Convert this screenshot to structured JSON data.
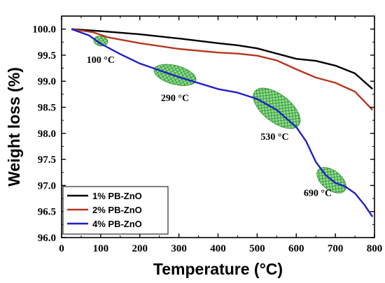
{
  "chart_data": {
    "type": "line",
    "xlabel": "Temperature (°C)",
    "ylabel": "Weight loss (%)",
    "xlim": [
      0,
      800
    ],
    "ylim": [
      96.0,
      100.25
    ],
    "x_ticks": [
      0,
      100,
      200,
      300,
      400,
      500,
      600,
      700,
      800
    ],
    "y_ticks": [
      96.0,
      96.5,
      97.0,
      97.5,
      98.0,
      98.5,
      99.0,
      99.5,
      100.0
    ],
    "grid": false,
    "legend_position": "bottom-left",
    "series": [
      {
        "name": "1% PB-ZnO",
        "color": "#000000",
        "points": [
          [
            25,
            100.0
          ],
          [
            100,
            99.96
          ],
          [
            200,
            99.9
          ],
          [
            300,
            99.82
          ],
          [
            400,
            99.73
          ],
          [
            450,
            99.69
          ],
          [
            500,
            99.63
          ],
          [
            550,
            99.53
          ],
          [
            600,
            99.43
          ],
          [
            650,
            99.39
          ],
          [
            700,
            99.3
          ],
          [
            750,
            99.15
          ],
          [
            795,
            98.85
          ]
        ]
      },
      {
        "name": "2% PB-ZnO",
        "color": "#b5371f",
        "points": [
          [
            25,
            100.0
          ],
          [
            80,
            99.94
          ],
          [
            120,
            99.84
          ],
          [
            200,
            99.73
          ],
          [
            300,
            99.62
          ],
          [
            400,
            99.55
          ],
          [
            450,
            99.53
          ],
          [
            500,
            99.49
          ],
          [
            550,
            99.4
          ],
          [
            600,
            99.23
          ],
          [
            650,
            99.07
          ],
          [
            700,
            98.97
          ],
          [
            750,
            98.8
          ],
          [
            795,
            98.45
          ]
        ]
      },
      {
        "name": "4% PB-ZnO",
        "color": "#1f1fc8",
        "points": [
          [
            25,
            100.0
          ],
          [
            70,
            99.88
          ],
          [
            100,
            99.72
          ],
          [
            150,
            99.52
          ],
          [
            200,
            99.34
          ],
          [
            300,
            99.08
          ],
          [
            400,
            98.85
          ],
          [
            450,
            98.78
          ],
          [
            500,
            98.66
          ],
          [
            550,
            98.45
          ],
          [
            600,
            98.12
          ],
          [
            625,
            97.85
          ],
          [
            650,
            97.45
          ],
          [
            675,
            97.2
          ],
          [
            700,
            97.05
          ],
          [
            725,
            96.98
          ],
          [
            750,
            96.85
          ],
          [
            775,
            96.62
          ],
          [
            795,
            96.4
          ]
        ]
      }
    ],
    "annotations": [
      {
        "text": "100 °C",
        "x": 100,
        "y": 99.77,
        "rx": 30,
        "ry": 0.19,
        "angle": 10,
        "label_x": 100,
        "label_y": 99.35
      },
      {
        "text": "290 °C",
        "x": 290,
        "y": 99.12,
        "rx": 92,
        "ry": 0.36,
        "angle": 15,
        "label_x": 290,
        "label_y": 98.62
      },
      {
        "text": "530 °C",
        "x": 550,
        "y": 98.48,
        "rx": 118,
        "ry": 0.53,
        "angle": 38,
        "label_x": 545,
        "label_y": 97.88
      },
      {
        "text": "690 °C",
        "x": 690,
        "y": 97.1,
        "rx": 72,
        "ry": 0.37,
        "angle": 38,
        "label_x": 655,
        "label_y": 96.8
      }
    ],
    "annotation_fill": "#8fe08f",
    "annotation_hatch": "#2e8b2e"
  }
}
